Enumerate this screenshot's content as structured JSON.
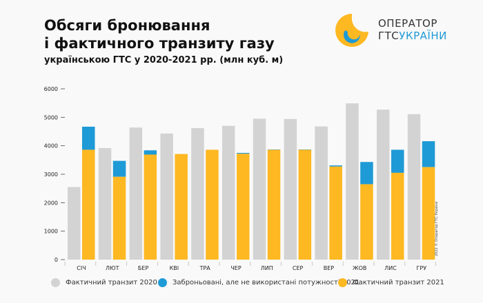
{
  "title_line1": "Обсяги бронювання",
  "title_line2": "і фактичного транзиту газу",
  "subtitle": "українською ГТС у 2020-2021 рр. (млн куб. м)",
  "logo": {
    "line1": "ОПЕРАТОР",
    "line2a": "ГТС",
    "line2b": "УКРАЇНИ"
  },
  "copyright": "2022 © Оператор ГТС України",
  "colors": {
    "transit2020": "#d3d3d3",
    "reserved_unused2021": "#1e9ad6",
    "transit2021": "#fdb822"
  },
  "chart_data": {
    "type": "bar",
    "categories": [
      "СІЧ",
      "ЛЮТ",
      "БЕР",
      "КВІ",
      "ТРА",
      "ЧЕР",
      "ЛИП",
      "СЕР",
      "ВЕР",
      "ЖОВ",
      "ЛИС",
      "ГРУ"
    ],
    "ylim": [
      0,
      6000
    ],
    "yticks": [
      "0",
      "1000",
      "2000",
      "3000",
      "4000",
      "5000",
      "6000"
    ],
    "grid": false,
    "legend": "bottom",
    "series": [
      {
        "name": "Фактичний транзит 2020",
        "values": [
          2550,
          3920,
          4640,
          4430,
          4620,
          4700,
          4950,
          4940,
          4680,
          5490,
          5270,
          5110
        ]
      },
      {
        "name": "Заброньовані, але не використані потужності 2021",
        "values": [
          810,
          560,
          150,
          0,
          0,
          30,
          10,
          10,
          40,
          780,
          810,
          910
        ],
        "stacked_on": "Фактичний транзит 2021"
      },
      {
        "name": "Фактичний транзит 2021",
        "values": [
          3860,
          2910,
          3690,
          3710,
          3860,
          3720,
          3860,
          3860,
          3270,
          2650,
          3050,
          3250
        ]
      }
    ]
  }
}
